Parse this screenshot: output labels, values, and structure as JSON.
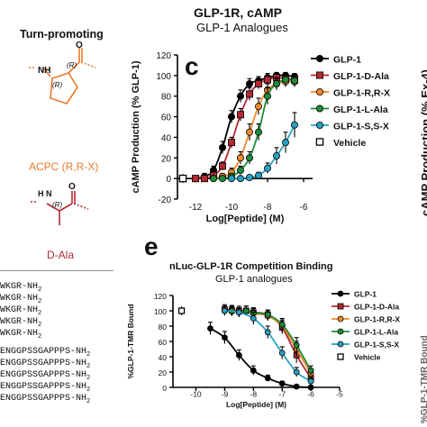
{
  "left_panel": {
    "heading": "Turn-promoting",
    "compounds": [
      {
        "label": "ACPC (R,R-X)",
        "color": "#e87a2c",
        "stereo": [
          "(R)",
          "(R)"
        ],
        "atom": "NH"
      },
      {
        "label": "D-Ala",
        "color": "#b22a35",
        "stereo": [
          "(R)"
        ],
        "atom": "H N"
      }
    ],
    "sequences": [
      {
        "text": "WKGR-NH",
        "sub": "2"
      },
      {
        "text": "WKGR-NH",
        "sub": "2"
      },
      {
        "text": "WKGR-NH",
        "sub": "2"
      },
      {
        "text": "WKGR-NH",
        "sub": "2"
      },
      {
        "text": "WKGR-NH",
        "sub": "2"
      },
      {
        "text": "ENGGPSSGAPPPS-NH",
        "sub": "2"
      },
      {
        "text": "ENGGPSSGAPPPS-NH",
        "sub": "2"
      },
      {
        "text": "ENGGPSSGAPPPS-NH",
        "sub": "2"
      },
      {
        "text": "ENGGPSSGAPPPS-NH",
        "sub": "2"
      },
      {
        "text": "ENGGPSSGAPPPS-NH",
        "sub": "2"
      }
    ]
  },
  "right_edge_label": "cAMP Production (% Ex-4)",
  "right_edge_label_bottom": "%GLP-1-TMR Bound",
  "colors": {
    "GLP-1": "#000000",
    "GLP-1-D-Ala": "#b22a35",
    "GLP-1-R,R-X": "#f08a2c",
    "GLP-1-L-Ala": "#1e8c3a",
    "GLP-1-S,S-X": "#2aa1c2",
    "Vehicle": "#000000"
  },
  "chart_data": [
    {
      "type": "line",
      "panel_letter": "c",
      "title": "GLP-1R, cAMP",
      "subtitle": "GLP-1 Analogues",
      "xlabel": "Log[Peptide] (M)",
      "ylabel": "cAMP Production (% GLP-1)",
      "xlim": [
        -13,
        -5.5
      ],
      "ylim": [
        -20,
        120
      ],
      "xticks": [
        -12,
        -10,
        -8,
        -6
      ],
      "yticks": [
        -20,
        0,
        20,
        40,
        60,
        80,
        100,
        120
      ],
      "legend_placement": "right",
      "legend": [
        "GLP-1",
        "GLP-1-D-Ala",
        "GLP-1-R,R-X",
        "GLP-1-L-Ala",
        "GLP-1-S,S-X",
        "Vehicle"
      ],
      "vehicle": {
        "x": -12.7,
        "y": 0
      },
      "series": [
        {
          "name": "GLP-1",
          "x": [
            -12,
            -11.5,
            -11,
            -10.5,
            -10,
            -9.5,
            -9,
            -8.5,
            -8,
            -7.5,
            -7,
            -6.5
          ],
          "y": [
            0,
            2,
            8,
            30,
            60,
            80,
            92,
            95,
            98,
            100,
            100,
            99
          ],
          "err": [
            2,
            3,
            4,
            6,
            6,
            6,
            5,
            4,
            4,
            3,
            3,
            3
          ]
        },
        {
          "name": "GLP-1-D-Ala",
          "x": [
            -12,
            -11.5,
            -11,
            -10.5,
            -10,
            -9.5,
            -9,
            -8.5,
            -8,
            -7.5,
            -7,
            -6.5
          ],
          "y": [
            0,
            0,
            3,
            12,
            35,
            62,
            82,
            92,
            96,
            98,
            97,
            96
          ],
          "err": [
            2,
            2,
            3,
            4,
            5,
            6,
            6,
            5,
            4,
            4,
            4,
            4
          ]
        },
        {
          "name": "GLP-1-R,R-X",
          "x": [
            -11,
            -10.5,
            -10,
            -9.5,
            -9,
            -8.5,
            -8,
            -7.5,
            -7,
            -6.5
          ],
          "y": [
            0,
            2,
            6,
            20,
            45,
            70,
            86,
            92,
            94,
            94
          ],
          "err": [
            2,
            3,
            4,
            6,
            8,
            8,
            6,
            5,
            5,
            5
          ]
        },
        {
          "name": "GLP-1-L-Ala",
          "x": [
            -11,
            -10.5,
            -10,
            -9.5,
            -9,
            -8.5,
            -8,
            -7.5,
            -7,
            -6.5
          ],
          "y": [
            0,
            0,
            2,
            8,
            20,
            45,
            80,
            92,
            96,
            95
          ],
          "err": [
            2,
            2,
            3,
            4,
            6,
            8,
            8,
            6,
            5,
            5
          ]
        },
        {
          "name": "GLP-1-S,S-X",
          "x": [
            -10,
            -9.5,
            -9,
            -8.5,
            -8,
            -7.5,
            -7,
            -6.5
          ],
          "y": [
            0,
            0,
            1,
            3,
            10,
            22,
            35,
            52
          ],
          "err": [
            2,
            2,
            2,
            3,
            5,
            8,
            10,
            12
          ]
        }
      ]
    },
    {
      "type": "line",
      "panel_letter": "e",
      "title": "nLuc-GLP-1R Competition Binding",
      "subtitle": "GLP-1 analogues",
      "xlabel": "Log[Peptide] (M)",
      "ylabel": "%GLP-1-TMR Bound",
      "xlim": [
        -10.8,
        -5
      ],
      "ylim": [
        0,
        120
      ],
      "xticks": [
        -10,
        -9,
        -8,
        -7,
        -6,
        -5
      ],
      "yticks": [
        0,
        20,
        40,
        60,
        80,
        100,
        120
      ],
      "legend_placement": "right",
      "legend": [
        "GLP-1",
        "GLP-1-D-Ala",
        "GLP-1-R,R-X",
        "GLP-1-L-Ala",
        "GLP-1-S,S-X",
        "Vehicle"
      ],
      "vehicle": {
        "x": -10.5,
        "y": 100
      },
      "series": [
        {
          "name": "GLP-1",
          "x": [
            -9.5,
            -9,
            -8.5,
            -8,
            -7.5,
            -7,
            -6.5,
            -6
          ],
          "y": [
            77,
            65,
            42,
            22,
            12,
            5,
            1,
            0
          ],
          "err": [
            8,
            8,
            7,
            6,
            4,
            3,
            2,
            2
          ]
        },
        {
          "name": "GLP-1-D-Ala",
          "x": [
            -9,
            -8.75,
            -8.5,
            -8.25,
            -8,
            -7.5,
            -7,
            -6.5,
            -6
          ],
          "y": [
            102,
            101,
            100,
            100,
            98,
            95,
            78,
            42,
            12
          ],
          "err": [
            6,
            6,
            6,
            6,
            6,
            6,
            8,
            10,
            6
          ]
        },
        {
          "name": "GLP-1-R,R-X",
          "x": [
            -9,
            -8.75,
            -8.5,
            -8.25,
            -8,
            -7.5,
            -7,
            -6.5,
            -6
          ],
          "y": [
            100,
            99,
            98,
            100,
            97,
            93,
            80,
            50,
            18
          ],
          "err": [
            6,
            6,
            6,
            6,
            6,
            6,
            8,
            10,
            6
          ]
        },
        {
          "name": "GLP-1-L-Ala",
          "x": [
            -9,
            -8.75,
            -8.5,
            -8.25,
            -8,
            -7.5,
            -7,
            -6.5,
            -6
          ],
          "y": [
            100,
            100,
            98,
            100,
            97,
            95,
            82,
            55,
            22
          ],
          "err": [
            6,
            6,
            6,
            6,
            6,
            6,
            8,
            10,
            6
          ]
        },
        {
          "name": "GLP-1-S,S-X",
          "x": [
            -9,
            -8.5,
            -8,
            -7.5,
            -7,
            -6.5,
            -6
          ],
          "y": [
            100,
            98,
            90,
            72,
            45,
            20,
            8
          ],
          "err": [
            6,
            6,
            8,
            8,
            8,
            6,
            4
          ]
        }
      ]
    }
  ]
}
